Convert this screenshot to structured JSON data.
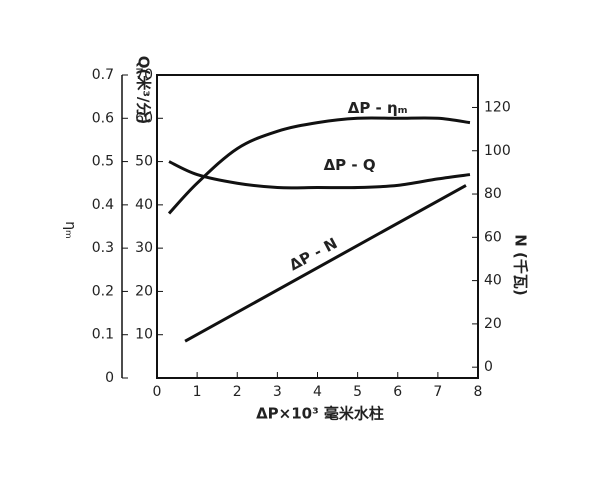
{
  "chart_data": {
    "type": "line",
    "xlabel": "ΔP×10³ 毫米水柱",
    "ylabel": "ηₘ",
    "y3label": "Q(米³/分)",
    "y2label": "N (千瓦)",
    "xlim": [
      0,
      8
    ],
    "xticks": [
      0,
      1,
      2,
      3,
      4,
      5,
      6,
      7,
      8
    ],
    "ylim": [
      0,
      0.7
    ],
    "yticks": [
      0,
      0.1,
      0.2,
      0.3,
      0.4,
      0.5,
      0.6,
      0.7
    ],
    "y3lim": [
      0,
      70
    ],
    "y3ticks": [
      10,
      20,
      30,
      40,
      50,
      60,
      70
    ],
    "y2lim": [
      -5,
      135
    ],
    "y2ticks": [
      0,
      20,
      40,
      60,
      80,
      100,
      120
    ],
    "series": [
      {
        "name": "ΔP - ηₘ",
        "axis": "y",
        "color": "#111",
        "x": [
          0.3,
          1,
          2,
          3,
          4,
          5,
          6,
          7,
          7.8
        ],
        "values": [
          0.38,
          0.45,
          0.53,
          0.57,
          0.59,
          0.6,
          0.6,
          0.6,
          0.59
        ]
      },
      {
        "name": "ΔP - Q",
        "axis": "y3",
        "color": "#111",
        "x": [
          0.3,
          1,
          2,
          3,
          4,
          5,
          6,
          7,
          7.8
        ],
        "values": [
          50,
          47,
          45,
          44,
          44,
          44,
          44.5,
          46,
          47
        ]
      },
      {
        "name": "ΔP - N",
        "axis": "y2",
        "color": "#111",
        "x": [
          0.7,
          7.7
        ],
        "values": [
          12,
          84
        ]
      }
    ]
  }
}
